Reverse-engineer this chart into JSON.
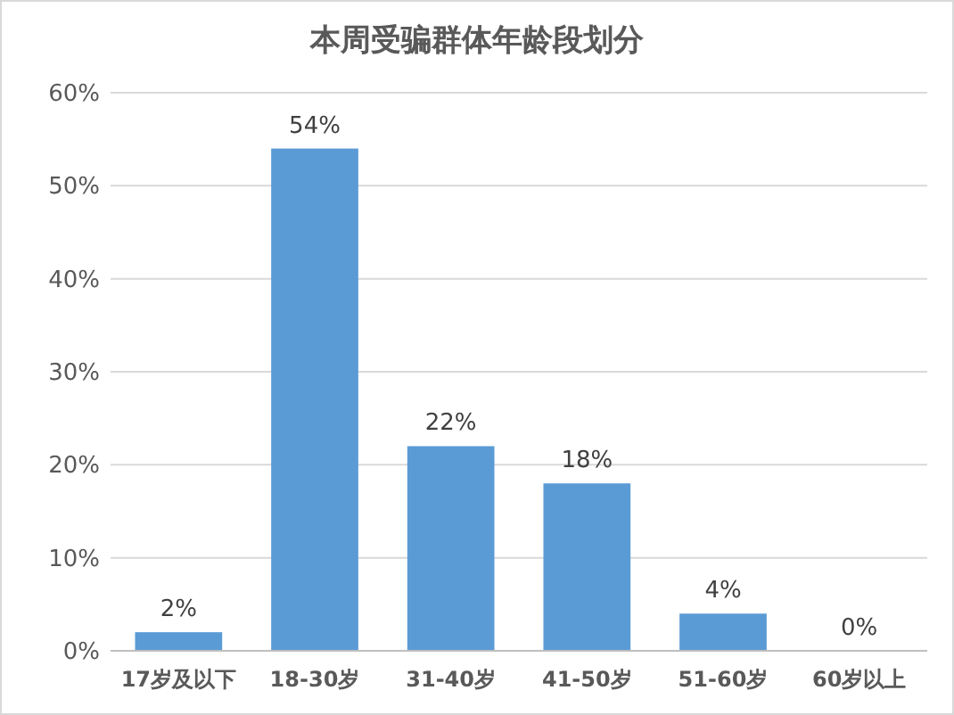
{
  "chart_data": {
    "type": "bar",
    "title": "本周受骗群体年龄段划分",
    "categories": [
      "17岁及以下",
      "18-30岁",
      "31-40岁",
      "41-50岁",
      "51-60岁",
      "60岁以上"
    ],
    "values": [
      2,
      54,
      22,
      18,
      4,
      0
    ],
    "value_labels": [
      "2%",
      "54%",
      "22%",
      "18%",
      "4%",
      "0%"
    ],
    "color": "#5b9bd5",
    "ylim": [
      0,
      60
    ],
    "yticks": [
      {
        "value": 0,
        "label": "0%"
      },
      {
        "value": 10,
        "label": "10%"
      },
      {
        "value": 20,
        "label": "20%"
      },
      {
        "value": 30,
        "label": "30%"
      },
      {
        "value": 40,
        "label": "40%"
      },
      {
        "value": 50,
        "label": "50%"
      },
      {
        "value": 60,
        "label": "60%"
      }
    ],
    "grid": "y"
  }
}
